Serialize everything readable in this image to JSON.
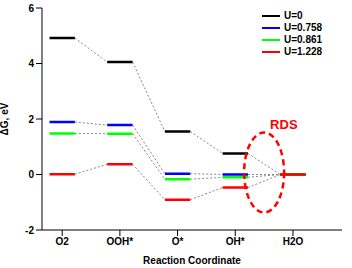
{
  "chart_data": {
    "type": "line",
    "x_label": "Reaction Coordinate",
    "y_label": "ΔG, eV",
    "categories": [
      "O2",
      "OOH*",
      "O*",
      "OH*",
      "H2O"
    ],
    "series": [
      {
        "name": "U=0",
        "color": "#000000",
        "values": [
          4.92,
          4.05,
          1.55,
          0.76,
          0
        ]
      },
      {
        "name": "U=0.758",
        "color": "#0000ff",
        "values": [
          1.89,
          1.78,
          0.03,
          0.0,
          0
        ]
      },
      {
        "name": "U=0.861",
        "color": "#00ff00",
        "values": [
          1.48,
          1.47,
          -0.17,
          -0.1,
          0
        ]
      },
      {
        "name": "U=1.228",
        "color": "#ff0000",
        "values": [
          0.01,
          0.37,
          -0.91,
          -0.47,
          0
        ]
      }
    ],
    "ylim": [
      -2,
      6
    ],
    "yticks": [
      -2,
      0,
      2,
      4,
      6
    ],
    "legend": "upper right",
    "annotations": [
      "RDS"
    ]
  }
}
